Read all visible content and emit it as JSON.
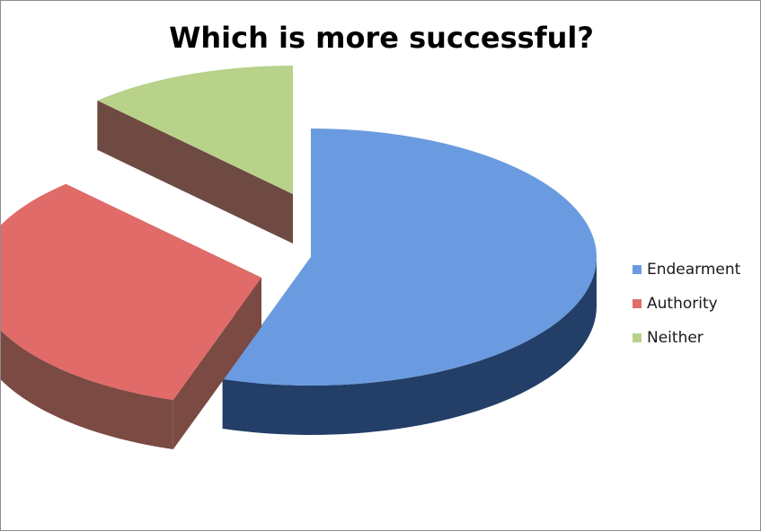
{
  "chart_data": {
    "type": "pie",
    "title": "Which is more successful?",
    "categories": [
      "Endearment",
      "Authority",
      "Neither"
    ],
    "values": [
      55,
      33,
      12
    ],
    "colors": [
      "#6a9be0",
      "#e06b69",
      "#b8d28a"
    ],
    "side_colors": [
      "#233f68",
      "#7b4a43",
      "#6e4a42"
    ],
    "style": "3d-exploded",
    "legend_position": "right"
  }
}
